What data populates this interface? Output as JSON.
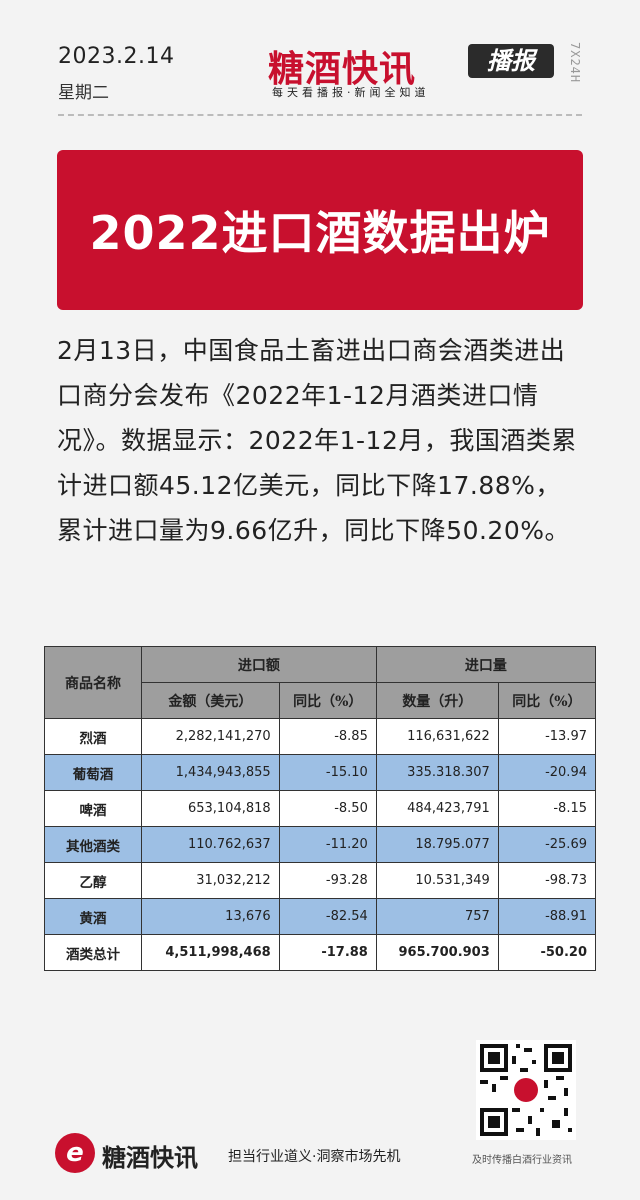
{
  "header": {
    "date": "2023.2.14",
    "weekday": "星期二",
    "brand_name": "糖酒快讯",
    "brand_badge": "播报",
    "brand_slogan": "每天看播报·新闻全知道",
    "side_text": "7X24H"
  },
  "banner": {
    "title": "2022进口酒数据出炉"
  },
  "article": {
    "paragraph": "2月13日，中国食品土畜进出口商会酒类进出口商分会发布《2022年1-12月酒类进口情况》。数据显示：2022年1-12月，我国酒类累计进口额45.12亿美元，同比下降17.88%，累计进口量为9.66亿升，同比下降50.20%。"
  },
  "table": {
    "header_name": "商品名称",
    "group_amount": "进口额",
    "group_volume": "进口量",
    "col_amount": "金额（美元）",
    "col_amount_yoy": "同比（%）",
    "col_volume": "数量（升）",
    "col_volume_yoy": "同比（%）",
    "rows": [
      {
        "name": "烈酒",
        "amount": "2,282,141,270",
        "amount_yoy": "-8.85",
        "volume": "116,631,622",
        "volume_yoy": "-13.97"
      },
      {
        "name": "葡萄酒",
        "amount": "1,434,943,855",
        "amount_yoy": "-15.10",
        "volume": "335.318.307",
        "volume_yoy": "-20.94"
      },
      {
        "name": "啤酒",
        "amount": "653,104,818",
        "amount_yoy": "-8.50",
        "volume": "484,423,791",
        "volume_yoy": "-8.15"
      },
      {
        "name": "其他酒类",
        "amount": "110.762,637",
        "amount_yoy": "-11.20",
        "volume": "18.795.077",
        "volume_yoy": "-25.69"
      },
      {
        "name": "乙醇",
        "amount": "31,032,212",
        "amount_yoy": "-93.28",
        "volume": "10.531,349",
        "volume_yoy": "-98.73"
      },
      {
        "name": "黄酒",
        "amount": "13,676",
        "amount_yoy": "-82.54",
        "volume": "757",
        "volume_yoy": "-88.91"
      }
    ],
    "total": {
      "name": "酒类总计",
      "amount": "4,511,998,468",
      "amount_yoy": "-17.88",
      "volume": "965.700.903",
      "volume_yoy": "-50.20"
    }
  },
  "footer": {
    "logo_letter": "e",
    "brand": "糖酒快讯",
    "slogan": "担当行业道义·洞察市场先机",
    "qr_caption": "及时传播白酒行业资讯"
  },
  "colors": {
    "brand_red": "#c8102e",
    "row_blue": "#9dbfe4",
    "header_gray": "#9e9e9e"
  }
}
